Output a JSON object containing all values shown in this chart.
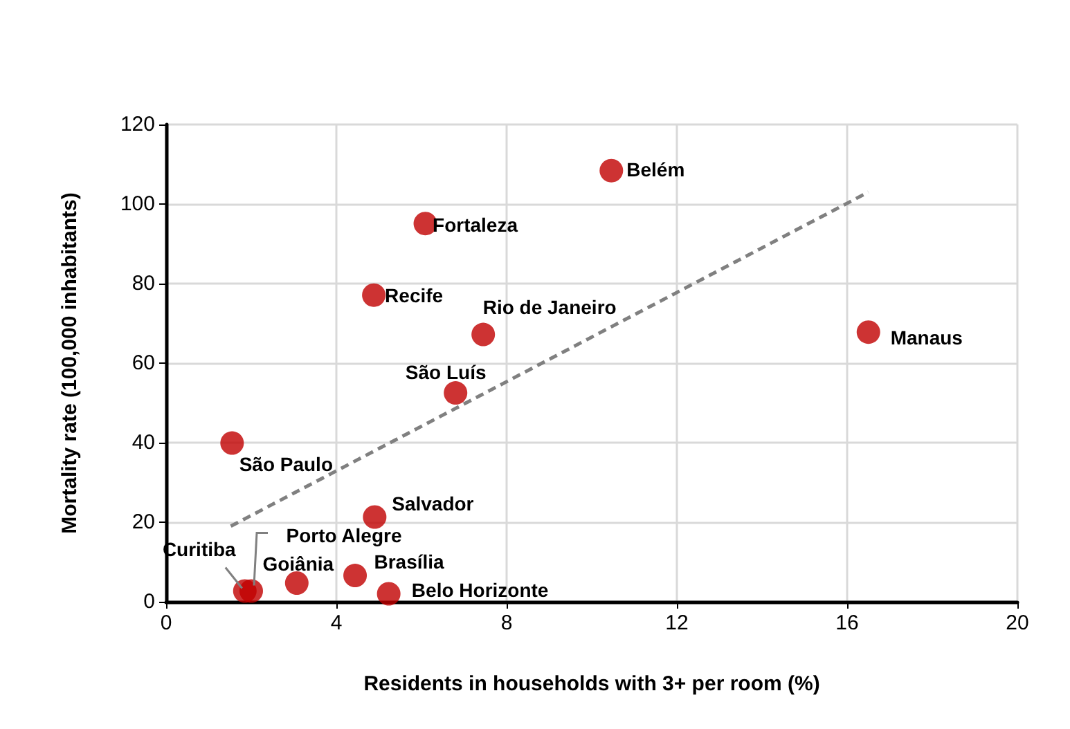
{
  "chart_data": {
    "type": "scatter",
    "xlabel": "Residents in households with 3+ per room (%)",
    "ylabel": "Mortality rate (100,000 inhabitants)",
    "xlim": [
      0,
      20
    ],
    "xticks": [
      0,
      4,
      8,
      12,
      16,
      20
    ],
    "ylim": [
      0,
      120
    ],
    "yticks": [
      0,
      20,
      40,
      60,
      80,
      100,
      120
    ],
    "grid": true,
    "marker": "circle",
    "series": [
      {
        "color": "#c00000",
        "x": [
          10.46,
          6.09,
          4.88,
          7.45,
          16.5,
          6.8,
          1.55,
          4.9,
          1.85,
          2.0,
          3.07,
          4.44,
          5.23
        ],
        "values": [
          108.4,
          95.1,
          77.1,
          67.2,
          67.8,
          52.5,
          39.9,
          21.3,
          2.7,
          2.7,
          4.7,
          6.6,
          2.0
        ]
      },
      {
        "type": "line",
        "color": "#808080",
        "line_style": "dashed",
        "marker": "none",
        "x": [
          1.52,
          16.5
        ],
        "values": [
          19,
          103
        ]
      }
    ],
    "annotations": [
      {
        "text": "Belém",
        "x": 10.46,
        "y": 108.4
      },
      {
        "text": "Fortaleza",
        "x": 6.09,
        "y": 95.1
      },
      {
        "text": "Recife",
        "x": 4.88,
        "y": 77.1
      },
      {
        "text": "Rio de Janeiro",
        "x": 7.45,
        "y": 67.2
      },
      {
        "text": "Manaus",
        "x": 16.5,
        "y": 67.8
      },
      {
        "text": "São Luís",
        "x": 6.8,
        "y": 52.5
      },
      {
        "text": "São Paulo",
        "x": 1.55,
        "y": 39.9
      },
      {
        "text": "Salvador",
        "x": 4.9,
        "y": 21.3
      },
      {
        "text": "Curitiba",
        "x": 1.85,
        "y": 2.7
      },
      {
        "text": "Porto Alegre",
        "x": 2.0,
        "y": 2.7
      },
      {
        "text": "Goiânia",
        "x": 3.07,
        "y": 4.7
      },
      {
        "text": "Brasília",
        "x": 4.44,
        "y": 6.6
      },
      {
        "text": "Belo Horizonte",
        "x": 5.23,
        "y": 2.0
      }
    ]
  }
}
